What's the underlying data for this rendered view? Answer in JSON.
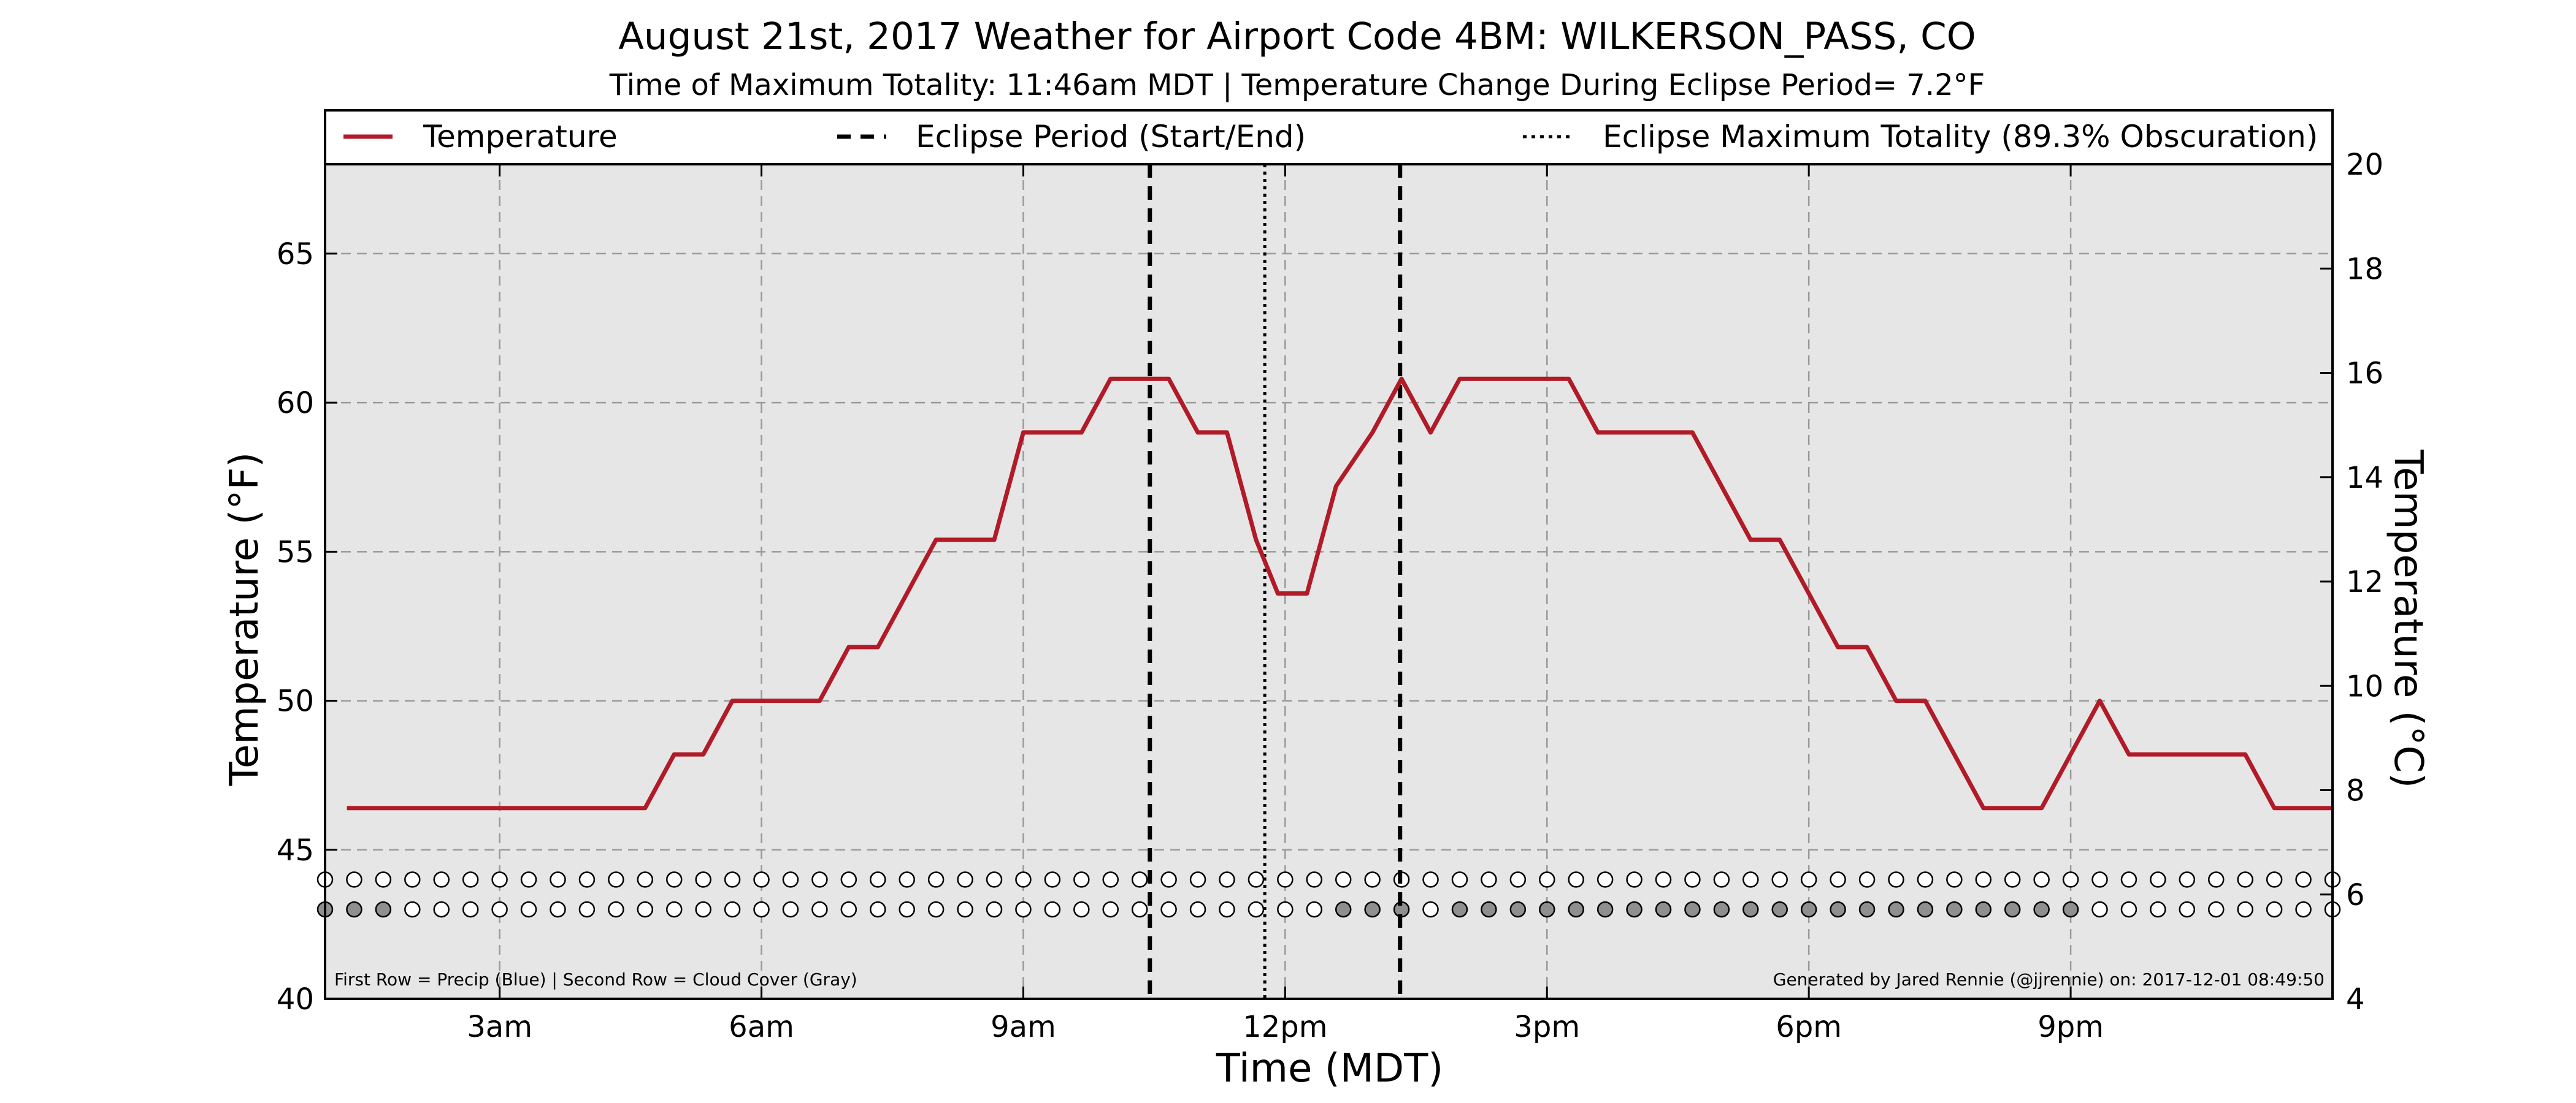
{
  "colors": {
    "background": "#ffffff",
    "plot_background": "#e6e6e6",
    "temperature_line": "#b11a27",
    "eclipse_lines": "#000000",
    "cloud_cover_filled": "#8f8f8f",
    "empty_marker": "#ffffff"
  },
  "chart_data": {
    "type": "line",
    "title": "August 21st, 2017 Weather for Airport Code 4BM: WILKERSON_PASS, CO",
    "subtitle": "Time of Maximum Totality: 11:46am MDT | Temperature Change During Eclipse Period= 7.2°F",
    "xlabel": "Time (MDT)",
    "ylabel_left": "Temperature (°F)",
    "ylabel_right": "Temperature (°C)",
    "xlim": [
      "01:00",
      "24:00"
    ],
    "ylim_left": [
      40,
      68
    ],
    "ylim_right": [
      4,
      20
    ],
    "x_ticks": [
      {
        "time": "03:00",
        "label": "3am"
      },
      {
        "time": "06:00",
        "label": "6am"
      },
      {
        "time": "09:00",
        "label": "9am"
      },
      {
        "time": "12:00",
        "label": "12pm"
      },
      {
        "time": "15:00",
        "label": "3pm"
      },
      {
        "time": "18:00",
        "label": "6pm"
      },
      {
        "time": "21:00",
        "label": "9pm"
      }
    ],
    "y_ticks_left": [
      40,
      45,
      50,
      55,
      60,
      65
    ],
    "y_ticks_right": [
      4,
      6,
      8,
      10,
      12,
      14,
      16,
      18,
      20
    ],
    "grid": true,
    "legend_position": "top",
    "legend": [
      {
        "label": "Temperature",
        "style": "solid"
      },
      {
        "label": "Eclipse Period (Start/End)",
        "style": "dashed"
      },
      {
        "label": "Eclipse Maximum Totality (89.3% Obscuration)",
        "style": "dotted"
      }
    ],
    "series": [
      {
        "name": "Temperature",
        "points": [
          [
            "01:15",
            46.4
          ],
          [
            "04:40",
            46.4
          ],
          [
            "05:00",
            48.2
          ],
          [
            "05:20",
            48.2
          ],
          [
            "05:40",
            50.0
          ],
          [
            "06:40",
            50.0
          ],
          [
            "07:00",
            51.8
          ],
          [
            "07:20",
            51.8
          ],
          [
            "08:00",
            55.4
          ],
          [
            "08:40",
            55.4
          ],
          [
            "09:00",
            59.0
          ],
          [
            "09:40",
            59.0
          ],
          [
            "10:00",
            60.8
          ],
          [
            "10:40",
            60.8
          ],
          [
            "11:00",
            59.0
          ],
          [
            "11:20",
            59.0
          ],
          [
            "11:40",
            55.4
          ],
          [
            "11:55",
            53.6
          ],
          [
            "12:15",
            53.6
          ],
          [
            "12:35",
            57.2
          ],
          [
            "13:00",
            59.0
          ],
          [
            "13:20",
            60.8
          ],
          [
            "13:40",
            59.0
          ],
          [
            "14:00",
            60.8
          ],
          [
            "15:15",
            60.8
          ],
          [
            "15:35",
            59.0
          ],
          [
            "16:40",
            59.0
          ],
          [
            "17:20",
            55.4
          ],
          [
            "17:40",
            55.4
          ],
          [
            "18:20",
            51.8
          ],
          [
            "18:40",
            51.8
          ],
          [
            "19:00",
            50.0
          ],
          [
            "19:20",
            50.0
          ],
          [
            "19:40",
            48.2
          ],
          [
            "20:00",
            46.4
          ],
          [
            "20:40",
            46.4
          ],
          [
            "21:20",
            50.0
          ],
          [
            "21:40",
            48.2
          ],
          [
            "23:00",
            48.2
          ],
          [
            "23:20",
            46.4
          ],
          [
            "24:00",
            46.4
          ]
        ]
      }
    ],
    "eclipse_period": {
      "start": "10:27",
      "end": "13:19"
    },
    "eclipse_max_totality": "11:46",
    "marker_rows": {
      "start": "01:00",
      "interval_minutes": 20,
      "row_values_f": [
        44,
        43
      ],
      "precip_row": [
        0,
        0,
        0,
        0,
        0,
        0,
        0,
        0,
        0,
        0,
        0,
        0,
        0,
        0,
        0,
        0,
        0,
        0,
        0,
        0,
        0,
        0,
        0,
        0,
        0,
        0,
        0,
        0,
        0,
        0,
        0,
        0,
        0,
        0,
        0,
        0,
        0,
        0,
        0,
        0,
        0,
        0,
        0,
        0,
        0,
        0,
        0,
        0,
        0,
        0,
        0,
        0,
        0,
        0,
        0,
        0,
        0,
        0,
        0,
        0,
        0,
        0,
        0,
        0,
        0,
        0,
        0,
        0,
        0,
        0
      ],
      "cloud_row": [
        1,
        1,
        1,
        0,
        0,
        0,
        0,
        0,
        0,
        0,
        0,
        0,
        0,
        0,
        0,
        0,
        0,
        0,
        0,
        0,
        0,
        0,
        0,
        0,
        0,
        0,
        0,
        0,
        0,
        0,
        0,
        0,
        0,
        0,
        0,
        1,
        1,
        1,
        0,
        1,
        1,
        1,
        1,
        1,
        1,
        1,
        1,
        1,
        1,
        1,
        1,
        1,
        1,
        1,
        1,
        1,
        1,
        1,
        1,
        1,
        1,
        0,
        0,
        0,
        0,
        0,
        0,
        0,
        0,
        0
      ]
    },
    "notes": {
      "left": "First Row = Precip (Blue) | Second Row = Cloud Cover (Gray)",
      "right": "Generated by Jared Rennie (@jjrennie) on: 2017-12-01 08:49:50"
    }
  }
}
